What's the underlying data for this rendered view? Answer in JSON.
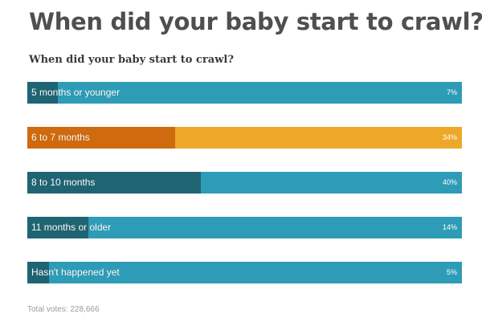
{
  "headline": "When did your baby start to crawl?",
  "question": "When did your baby start to crawl?",
  "total_votes": "Total votes: 228,666",
  "colors": {
    "bar_default": "#2e9cb6",
    "fill_default": "#1f6473",
    "bar_selected": "#eda82a",
    "fill_selected": "#cf6a0e"
  },
  "chart_data": {
    "type": "bar",
    "orientation": "horizontal",
    "title": "When did your baby start to crawl?",
    "categories": [
      "5 months or younger",
      "6 to 7 months",
      "8 to 10 months",
      "11 months or older",
      "Hasn't happened yet"
    ],
    "values": [
      7,
      34,
      40,
      14,
      5
    ],
    "labels": [
      "7%",
      "34%",
      "40%",
      "14%",
      "5%"
    ],
    "unit": "%",
    "selected_index": 1,
    "xlim": [
      0,
      100
    ],
    "grid": false,
    "legend": "none"
  }
}
